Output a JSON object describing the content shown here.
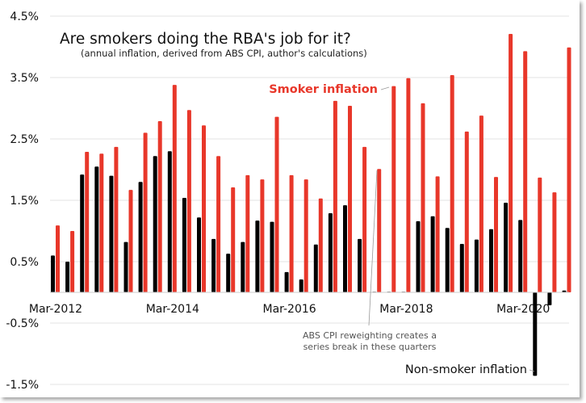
{
  "chart_data": {
    "type": "bar",
    "title": "Are smokers doing the RBA's job for it?",
    "subtitle": "(annual inflation, derived from ABS CPI, author's calculations)",
    "x_start": "Mar-2012",
    "frequency": "quarterly",
    "x_tick_labels": [
      "Mar-2012",
      "Mar-2014",
      "Mar-2016",
      "Mar-2018",
      "Mar-2020"
    ],
    "y_tick_labels": [
      "4.5%",
      "3.5%",
      "2.5%",
      "1.5%",
      "0.5%",
      "-0.5%",
      "-1.5%"
    ],
    "y_ticks": [
      4.5,
      3.5,
      2.5,
      1.5,
      0.5,
      -0.5,
      -1.5
    ],
    "ylim": [
      -1.5,
      4.5
    ],
    "ylabel": "",
    "xlabel": "",
    "grid": true,
    "series": [
      {
        "name": "Non-smoker inflation",
        "color": "#000000",
        "values": [
          0.6,
          0.5,
          1.92,
          2.05,
          1.9,
          0.82,
          1.8,
          2.22,
          2.3,
          1.54,
          1.22,
          0.87,
          0.63,
          0.82,
          1.17,
          1.15,
          0.33,
          0.21,
          0.78,
          1.29,
          1.42,
          0.87,
          0,
          0,
          0,
          1.16,
          1.24,
          1.05,
          0.79,
          0.86,
          1.03,
          1.46,
          1.18,
          -1.36,
          -0.21,
          0.03
        ]
      },
      {
        "name": "Smoker inflation",
        "color": "#e8372a",
        "values": [
          1.09,
          1.0,
          2.29,
          2.26,
          2.37,
          1.67,
          2.6,
          2.79,
          3.38,
          2.97,
          2.72,
          2.22,
          1.71,
          1.91,
          1.84,
          2.86,
          1.91,
          1.84,
          1.53,
          3.12,
          3.04,
          2.37,
          2.01,
          3.36,
          3.49,
          3.08,
          1.89,
          3.54,
          2.62,
          2.88,
          1.88,
          4.21,
          3.93,
          1.87,
          1.63,
          3.99
        ]
      }
    ],
    "annotations": {
      "smoker": "Smoker inflation",
      "nonsmoker": "Non-smoker inflation",
      "break_line1": "ABS CPI reweighting creates a",
      "break_line2": "series break in these quarters"
    }
  }
}
